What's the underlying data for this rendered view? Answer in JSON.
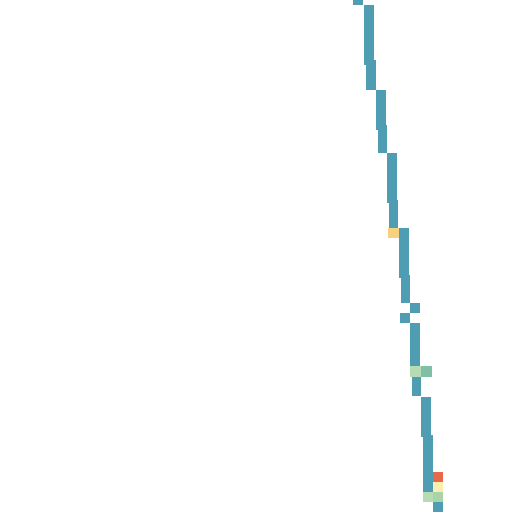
{
  "map": {
    "background": "#ffffff",
    "route_color": "#4e9db3",
    "marker_colors": {
      "yellow": "#f7d27e",
      "mint": "#b6dcb4",
      "teal": "#7fbfa6",
      "red": "#e8684a",
      "cream": "#fbefb0"
    }
  }
}
